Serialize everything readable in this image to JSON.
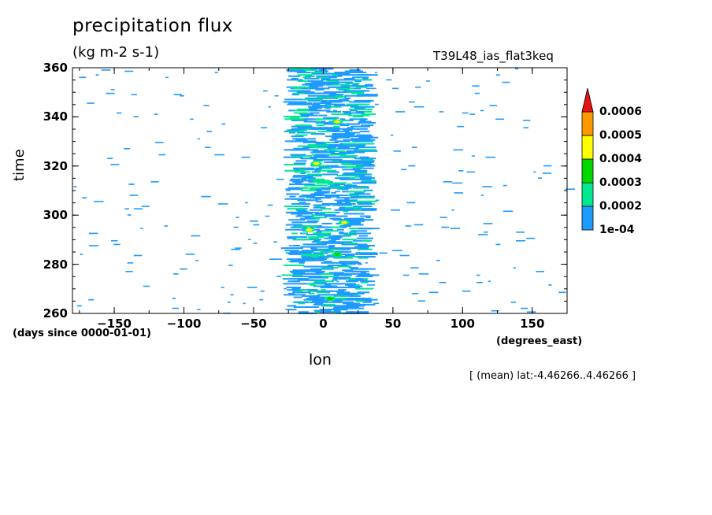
{
  "chart_data": {
    "type": "heatmap",
    "title": "precipitation flux",
    "units": "(kg m-2 s-1)",
    "run_label": "T39L48_ias_flat3keq",
    "xlabel": "lon",
    "ylabel": "time",
    "x_units": "(degrees_east)",
    "y_units": "(days since 0000-01-01)",
    "xlim": [
      -180,
      175
    ],
    "ylim": [
      260,
      360
    ],
    "x_ticks": [
      -150,
      -100,
      -50,
      0,
      50,
      100,
      150
    ],
    "y_ticks": [
      260,
      280,
      300,
      320,
      340,
      360
    ],
    "annotation": "[ (mean) lat:-4.46266..4.46266 ]",
    "colorbar": {
      "levels": [
        "1e-04",
        "0.0002",
        "0.0003",
        "0.0004",
        "0.0005",
        "0.0006"
      ],
      "colors": [
        "#1e9bff",
        "#00e890",
        "#00d800",
        "#ffff00",
        "#ff9900",
        "#e81010"
      ]
    },
    "convective_band": {
      "center_lon": 5,
      "width_lon": 40,
      "peaks": [
        {
          "lon": -5,
          "time": 321,
          "level": "0.0004"
        },
        {
          "lon": 10,
          "time": 338,
          "level": "0.0004"
        },
        {
          "lon": 15,
          "time": 297,
          "level": "0.0004"
        },
        {
          "lon": -10,
          "time": 294,
          "level": "0.0004"
        },
        {
          "lon": 10,
          "time": 284,
          "level": "0.0003"
        },
        {
          "lon": 5,
          "time": 266,
          "level": "0.0003"
        }
      ]
    }
  }
}
